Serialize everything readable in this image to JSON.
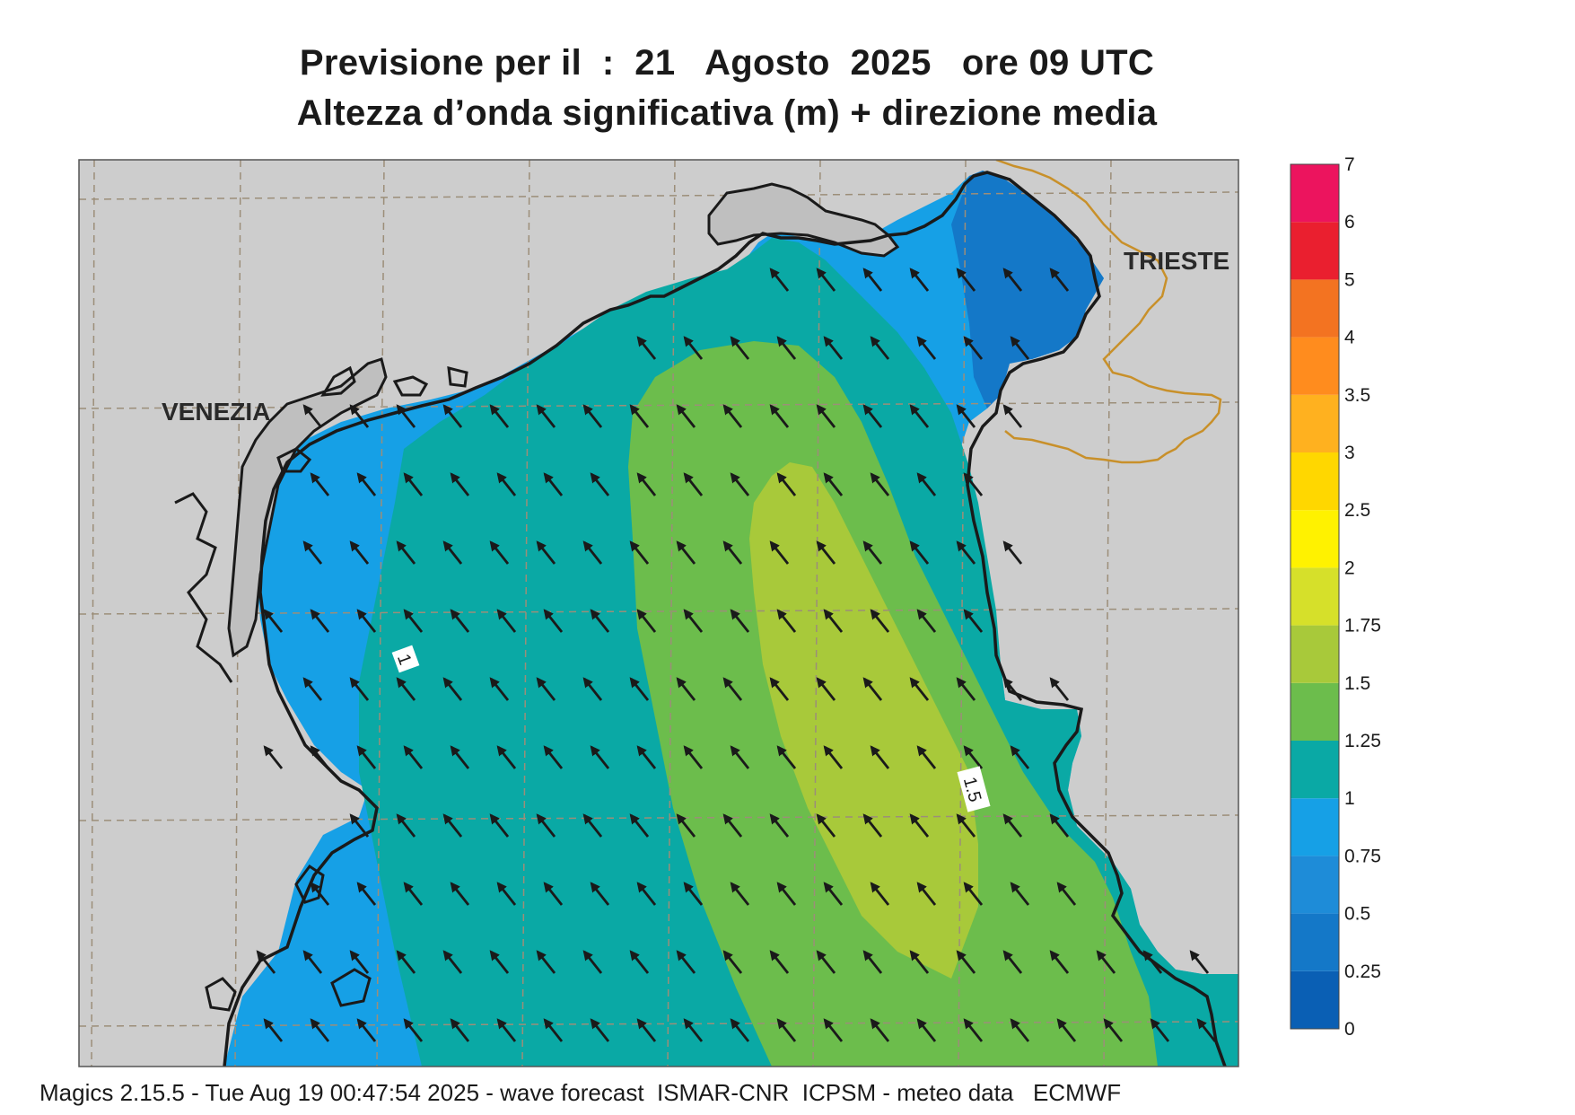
{
  "header": {
    "title_line1": "Previsione per il  :  21   Agosto  2025   ore 09 UTC",
    "title_line2": "Altezza d’onda significativa (m) + direzione media"
  },
  "map": {
    "region": "Northern Adriatic Sea",
    "city_labels": [
      "VENEZIA",
      "TRIESTE"
    ],
    "contour_labels": [
      "1",
      "1.5"
    ],
    "land_color": "#cdcdcd",
    "border_color": "#c8902a",
    "arrow_direction": "north-west"
  },
  "colorbar": {
    "levels": [
      "0",
      "0.25",
      "0.5",
      "0.75",
      "1",
      "1.25",
      "1.5",
      "1.75",
      "2",
      "2.5",
      "3",
      "3.5",
      "4",
      "5",
      "6",
      "7"
    ],
    "colors": [
      "#0a5fb4",
      "#1478c8",
      "#1e8cd8",
      "#16a0e6",
      "#0aa9a5",
      "#6cbd4c",
      "#a8c93a",
      "#d6e02a",
      "#fff200",
      "#ffd700",
      "#ffb11f",
      "#ff8c1e",
      "#f37321",
      "#ea1f2f",
      "#ec145e"
    ]
  },
  "footer": {
    "text": "Magics 2.15.5 - Tue Aug 19 00:47:54 2025 - wave forecast  ISMAR-CNR  ICPSM - meteo data   ECMWF"
  }
}
